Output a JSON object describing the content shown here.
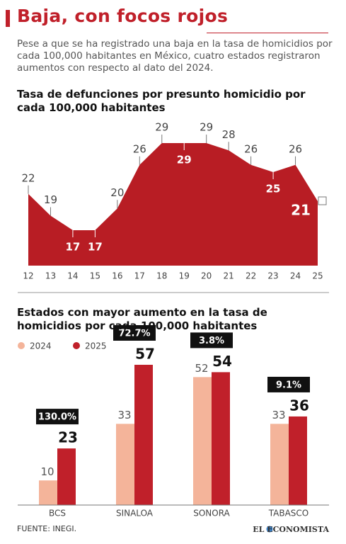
{
  "header": {
    "title": "Baja, con focos rojos",
    "subtitle": "Pese a que se ha registrado una baja en la tasa de homicidios por cada 100,000 habitantes en México, cuatro estados registraron aumentos con respecto al dato del 2024."
  },
  "chart_data": [
    {
      "type": "area",
      "title": "Tasa de defunciones por presunto homicidio por cada 100,000 habitantes",
      "categories": [
        "12",
        "13",
        "14",
        "15",
        "16",
        "17",
        "18",
        "19",
        "20",
        "21",
        "22",
        "23",
        "24",
        "25"
      ],
      "values": [
        22,
        19,
        17,
        17,
        20,
        26,
        29,
        29,
        29,
        28,
        26,
        25,
        26,
        21
      ],
      "color": "#b81d24"
    },
    {
      "type": "grouped-bar",
      "title": "Estados con mayor aumento en la tasa de homicidios por cada 100,000 habitantes",
      "categories": [
        "BCS",
        "SINALOA",
        "SONORA",
        "TABASCO"
      ],
      "series": [
        {
          "name": "2024",
          "color": "#f4b49a",
          "values": [
            10,
            33,
            52,
            33
          ]
        },
        {
          "name": "2025",
          "color": "#c0202a",
          "values": [
            23,
            57,
            54,
            36
          ]
        }
      ],
      "change_labels": [
        "130.0%",
        "72.7%",
        "3.8%",
        "9.1%"
      ]
    }
  ],
  "footer": {
    "source": "FUENTE:  INEGI.",
    "brand": "EL ECONOMISTA"
  }
}
